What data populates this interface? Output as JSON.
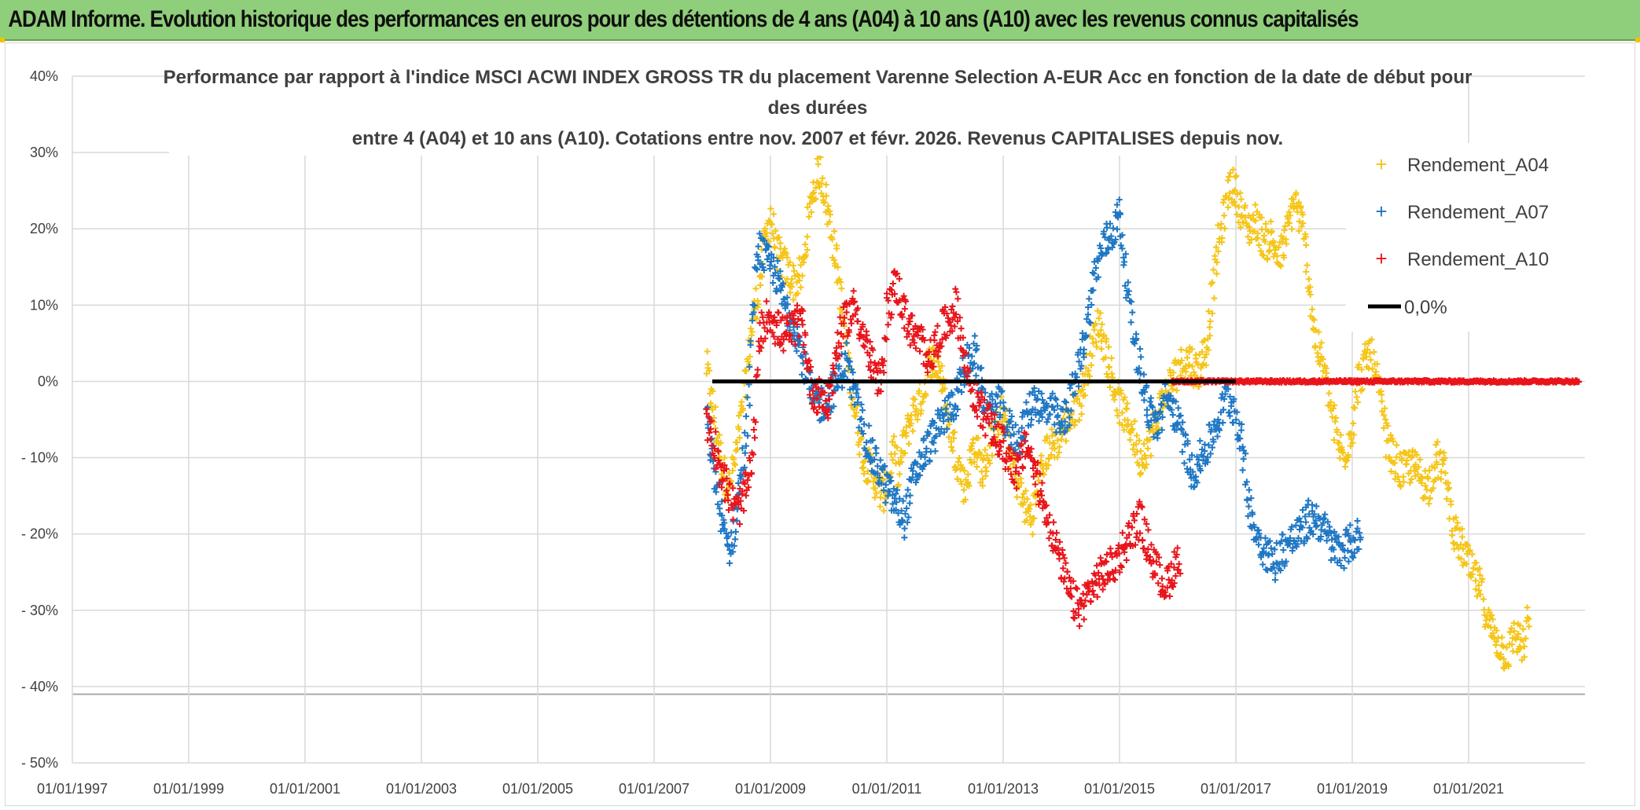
{
  "banner": {
    "title": "ADAM Informe. Evolution historique des performances en euros pour des détentions de 4 ans (A04) à 10 ans (A10) avec les revenus connus capitalisés"
  },
  "chart_data": {
    "type": "scatter",
    "title_lines": [
      "Performance par rapport à l'indice MSCI ACWI INDEX GROSS TR  du placement Varenne Selection A-EUR Acc en fonction de la date de début pour",
      "des durées",
      "entre 4 (A04) et 10 ans (A10). Cotations entre nov. 2007 et févr. 2026. Revenus CAPITALISES depuis nov."
    ],
    "x_tick_labels": [
      "01/01/1997",
      "01/01/1999",
      "01/01/2001",
      "01/01/2003",
      "01/01/2005",
      "01/01/2007",
      "01/01/2009",
      "01/01/2011",
      "01/01/2013",
      "01/01/2015",
      "01/01/2017",
      "01/01/2019",
      "01/01/2021"
    ],
    "x_range": [
      1997.0,
      2023.0
    ],
    "y_tick_labels": [
      "40%",
      "30%",
      "20%",
      "10%",
      "0%",
      "- 10%",
      "- 20%",
      "- 30%",
      "- 40%",
      "- 50%"
    ],
    "y_range": [
      -50,
      40
    ],
    "colors": {
      "A04": "#f5c518",
      "A07": "#1f77c4",
      "A10": "#e8151b",
      "zero": "#000000",
      "grid": "#d9d9d9",
      "text": "#404040"
    },
    "legend": {
      "position": "top-right",
      "entries": [
        {
          "key": "A04",
          "label": "Rendement_A04",
          "marker": "+"
        },
        {
          "key": "A07",
          "label": "Rendement_A07",
          "marker": "+"
        },
        {
          "key": "A10",
          "label": "Rendement_A10",
          "marker": "+"
        },
        {
          "key": "zero",
          "label": "0,0%",
          "marker": "line"
        }
      ]
    },
    "series": [
      {
        "name": "Rendement_A04",
        "key": "A04",
        "x": [
          2007.9,
          2008.0,
          2008.1,
          2008.2,
          2008.3,
          2008.4,
          2008.5,
          2008.6,
          2008.7,
          2008.8,
          2008.9,
          2009.0,
          2009.1,
          2009.25,
          2009.4,
          2009.55,
          2009.7,
          2009.85,
          2010.0,
          2010.15,
          2010.25,
          2010.35,
          2010.45,
          2010.6,
          2010.75,
          2010.9,
          2011.0,
          2011.1,
          2011.2,
          2011.3,
          2011.45,
          2011.6,
          2011.75,
          2011.9,
          2012.05,
          2012.2,
          2012.35,
          2012.5,
          2012.65,
          2012.8,
          2012.95,
          2013.05,
          2013.2,
          2013.35,
          2013.5,
          2013.6,
          2013.75,
          2013.9,
          2014.05,
          2014.2,
          2014.35,
          2014.5,
          2014.65,
          2014.8,
          2014.95,
          2015.05,
          2015.2,
          2015.35,
          2015.5,
          2015.6,
          2015.75,
          2015.9,
          2016.05,
          2016.2,
          2016.35,
          2016.5,
          2016.6,
          2016.7,
          2016.8,
          2016.9,
          2017.0,
          2017.1,
          2017.2,
          2017.35,
          2017.5,
          2017.6,
          2017.75,
          2017.9,
          2018.0,
          2018.15,
          2018.25,
          2018.35,
          2018.5,
          2018.6,
          2018.75,
          2018.85,
          2019.0,
          2019.1,
          2019.2,
          2019.3,
          2019.4,
          2019.5,
          2019.6,
          2019.7,
          2019.85,
          2020.0,
          2020.15,
          2020.3,
          2020.45,
          2020.6,
          2020.75,
          2020.9,
          2021.05,
          2021.2,
          2021.35,
          2021.5,
          2021.65,
          2021.8,
          2021.95,
          2022.05
        ],
        "y": [
          2,
          -3,
          -8,
          -12,
          -14,
          -10,
          -5,
          2,
          8,
          12,
          18,
          22,
          17,
          15,
          13,
          14,
          24,
          28,
          22,
          15,
          8,
          2,
          -4,
          -10,
          -12,
          -15,
          -14,
          -9,
          -12,
          -8,
          -4,
          -2,
          3,
          2,
          -5,
          -10,
          -14,
          -8,
          -12,
          -8,
          -4,
          -6,
          -12,
          -16,
          -18,
          -14,
          -9,
          -8,
          -6,
          -4,
          -2,
          4,
          8,
          3,
          -2,
          -4,
          -6,
          -10,
          -8,
          -6,
          -2,
          0,
          2,
          3,
          1,
          5,
          12,
          18,
          22,
          26,
          25,
          22,
          20,
          21,
          18,
          19,
          16,
          20,
          24,
          20,
          14,
          6,
          2,
          -2,
          -8,
          -10,
          -6,
          0,
          2,
          4,
          1,
          -3,
          -8,
          -10,
          -12,
          -11,
          -12,
          -14,
          -10,
          -12,
          -20,
          -22,
          -25,
          -27,
          -32,
          -34,
          -36,
          -33,
          -35,
          -30
        ],
        "spread": 2.5
      },
      {
        "name": "Rendement_A07",
        "key": "A07",
        "x": [
          2007.9,
          2008.0,
          2008.1,
          2008.2,
          2008.3,
          2008.4,
          2008.5,
          2008.6,
          2008.7,
          2008.8,
          2008.9,
          2009.0,
          2009.1,
          2009.25,
          2009.4,
          2009.55,
          2009.7,
          2009.85,
          2010.0,
          2010.15,
          2010.3,
          2010.45,
          2010.6,
          2010.75,
          2010.9,
          2011.0,
          2011.15,
          2011.3,
          2011.45,
          2011.6,
          2011.75,
          2011.9,
          2012.05,
          2012.2,
          2012.35,
          2012.5,
          2012.65,
          2012.8,
          2012.95,
          2013.1,
          2013.25,
          2013.4,
          2013.55,
          2013.7,
          2013.85,
          2014.0,
          2014.15,
          2014.3,
          2014.45,
          2014.6,
          2014.75,
          2014.9,
          2015.0,
          2015.1,
          2015.2,
          2015.35,
          2015.5,
          2015.65,
          2015.8,
          2015.95,
          2016.1,
          2016.25,
          2016.4,
          2016.55,
          2016.7,
          2016.85,
          2017.0,
          2017.1,
          2017.2,
          2017.35,
          2017.5,
          2017.65,
          2017.8,
          2017.95,
          2018.1,
          2018.25,
          2018.4,
          2018.55,
          2018.7,
          2018.85,
          2019.0,
          2019.15
        ],
        "y": [
          -5,
          -10,
          -15,
          -20,
          -22,
          -18,
          -12,
          -6,
          10,
          18,
          16,
          15,
          14,
          10,
          8,
          3,
          -2,
          -3,
          -2,
          0,
          3,
          -2,
          -6,
          -10,
          -12,
          -14,
          -16,
          -18,
          -13,
          -10,
          -8,
          -6,
          -4,
          -2,
          2,
          4,
          -2,
          -4,
          -3,
          -6,
          -8,
          -5,
          -2,
          -4,
          -4,
          -6,
          -3,
          2,
          8,
          15,
          18,
          20,
          22,
          15,
          8,
          2,
          -4,
          -6,
          -2,
          -4,
          -8,
          -12,
          -10,
          -8,
          -5,
          -2,
          -4,
          -8,
          -15,
          -20,
          -22,
          -24,
          -22,
          -21,
          -20,
          -18,
          -18,
          -20,
          -22,
          -22,
          -21,
          -20
        ],
        "spread": 2.5
      },
      {
        "name": "Rendement_A10",
        "key": "A10",
        "x": [
          2007.9,
          2008.0,
          2008.1,
          2008.2,
          2008.3,
          2008.4,
          2008.5,
          2008.6,
          2008.7,
          2008.8,
          2008.9,
          2009.0,
          2009.1,
          2009.25,
          2009.4,
          2009.55,
          2009.7,
          2009.85,
          2010.0,
          2010.15,
          2010.3,
          2010.45,
          2010.6,
          2010.75,
          2010.9,
          2011.0,
          2011.15,
          2011.3,
          2011.45,
          2011.6,
          2011.75,
          2011.9,
          2012.05,
          2012.2,
          2012.35,
          2012.5,
          2012.65,
          2012.8,
          2012.95,
          2013.1,
          2013.25,
          2013.4,
          2013.55,
          2013.7,
          2013.85,
          2014.0,
          2014.15,
          2014.3,
          2014.45,
          2014.6,
          2014.75,
          2014.9,
          2015.05,
          2015.2,
          2015.35,
          2015.5,
          2015.65,
          2015.8,
          2015.95,
          2016.05
        ],
        "y": [
          -5,
          -7,
          -10,
          -13,
          -15,
          -17,
          -16,
          -14,
          -10,
          5,
          8,
          9,
          7,
          6,
          7,
          8,
          -1,
          -2,
          -3,
          5,
          8,
          10,
          6,
          2,
          -1,
          9,
          13,
          9,
          6,
          5,
          3,
          6,
          8,
          10,
          2,
          -2,
          -4,
          -6,
          -8,
          -10,
          -12,
          -8,
          -12,
          -16,
          -20,
          -24,
          -28,
          -30,
          -28,
          -26,
          -25,
          -24,
          -22,
          -20,
          -18,
          -22,
          -25,
          -27,
          -24,
          -24
        ],
        "spread": 2.5
      },
      {
        "name": "Rendement_A10 (zero tail)",
        "key": "A10",
        "x_start": 2015.9,
        "x_end": 2022.9,
        "y": 0
      }
    ],
    "zero_line": {
      "label": "0,0%",
      "x_start": 2008.0,
      "x_end": 2017.0,
      "y": 0
    }
  }
}
